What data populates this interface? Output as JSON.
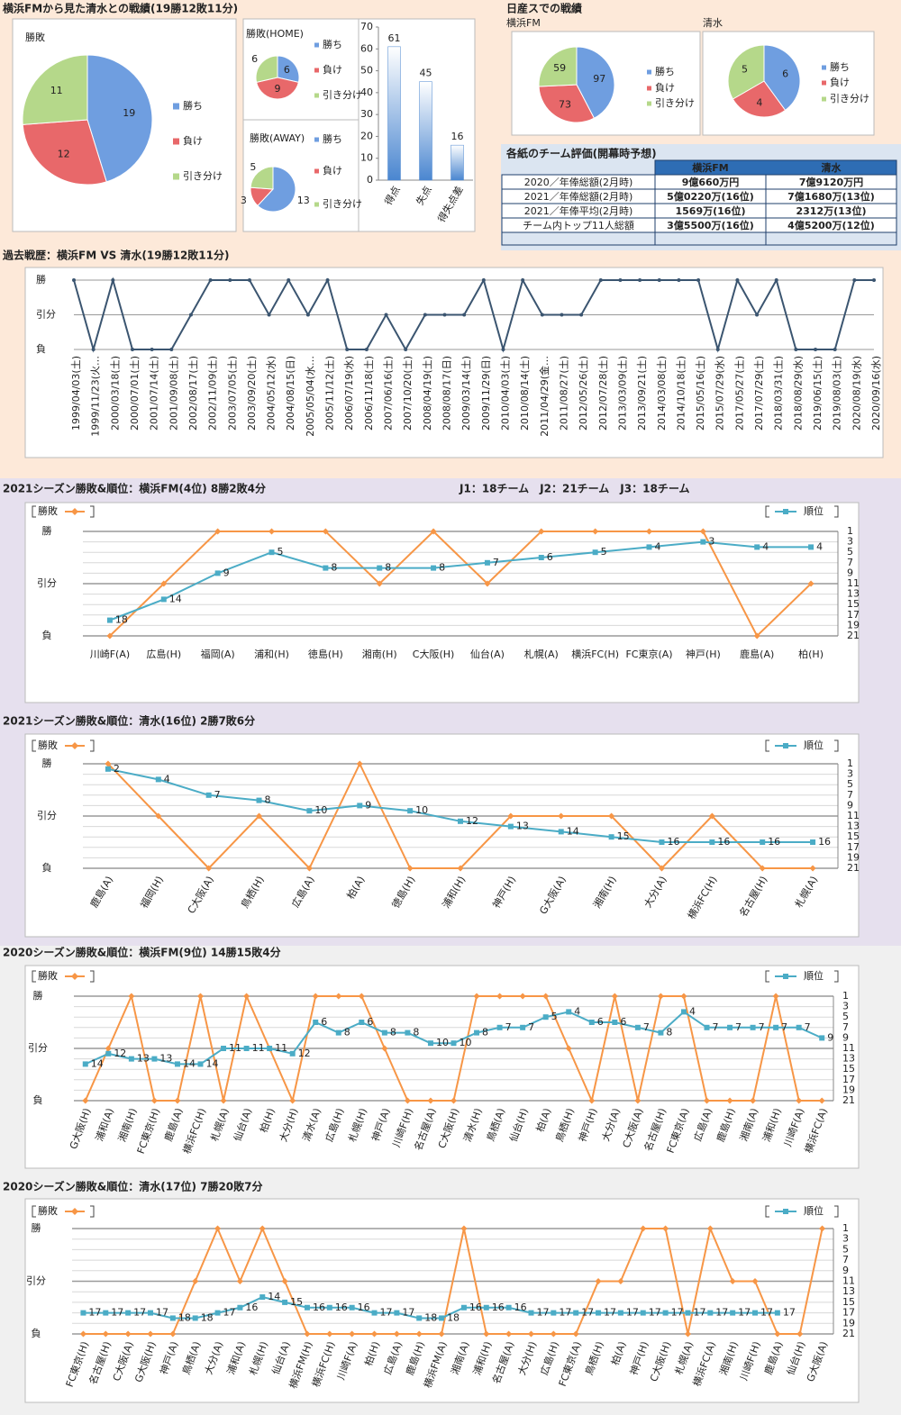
{
  "headings": [
    "横浜FMから見た清水との戦績(19勝12敗11分)",
    "日産スでの戦績"
  ],
  "table": {
    "title": "各紙のチーム評価(開幕時予想)",
    "header": [
      "横浜FM",
      "清水"
    ],
    "rows": [
      [
        "2020／年俸総額(2月時)",
        "9億660万円",
        "7億9120万円"
      ],
      [
        "2021／年俸総額(2月時)",
        "5億0220万(16位)",
        "7億1680万(13位)"
      ],
      [
        "2021／年俸平均(2月時)",
        "1569万(16位)",
        "2312万(13位)"
      ],
      [
        "チーム内トップ11人総額",
        "3億5500万(16位)",
        "4億5200万(12位)"
      ]
    ]
  },
  "chart_data": [
    {
      "type": "pie",
      "title": "勝敗",
      "categories": [
        "勝ち",
        "負け",
        "引き分け"
      ],
      "values": [
        19,
        12,
        11
      ],
      "colors": [
        "#6f9ee0",
        "#e8686a",
        "#b5d88a"
      ]
    },
    {
      "type": "pie",
      "title": "勝敗(HOME)",
      "categories": [
        "勝ち",
        "負け",
        "引き分け"
      ],
      "values": [
        6,
        9,
        6
      ],
      "colors": [
        "#6f9ee0",
        "#e8686a",
        "#b5d88a"
      ]
    },
    {
      "type": "pie",
      "title": "勝敗(AWAY)",
      "categories": [
        "勝ち",
        "負け",
        "引き分け"
      ],
      "values": [
        13,
        3,
        5
      ],
      "colors": [
        "#6f9ee0",
        "#e8686a",
        "#b5d88a"
      ]
    },
    {
      "type": "bar",
      "categories": [
        "得点",
        "失点",
        "得失点差"
      ],
      "values": [
        61,
        45,
        16
      ],
      "color": "#4a86d0",
      "ylim": [
        0,
        70
      ],
      "yticks": [
        0,
        10,
        20,
        30,
        40,
        50,
        60,
        70
      ]
    },
    {
      "type": "pie",
      "title": "横浜FM",
      "categories": [
        "勝ち",
        "負け",
        "引き分け"
      ],
      "values": [
        97,
        73,
        59
      ],
      "colors": [
        "#6f9ee0",
        "#e8686a",
        "#b5d88a"
      ]
    },
    {
      "type": "pie",
      "title": "清水",
      "categories": [
        "勝ち",
        "負け",
        "引き分け"
      ],
      "values": [
        6,
        4,
        5
      ],
      "colors": [
        "#6f9ee0",
        "#e8686a",
        "#b5d88a"
      ]
    },
    {
      "type": "line",
      "title": "過去戦歴：横浜FM VS 清水(19勝12敗11分)",
      "color": "#3b5570",
      "categories": [
        "1999/04/03(土)",
        "1999/11/23(火…",
        "2000/03/18(土)",
        "2000/07/01(土)",
        "2001/07/14(土)",
        "2001/09/08(土)",
        "2002/08/17(土)",
        "2002/11/09(土)",
        "2003/07/05(土)",
        "2003/09/20(土)",
        "2004/05/12(水)",
        "2004/08/15(日)",
        "2005/05/04(水…",
        "2005/11/12(土)",
        "2006/07/19(水)",
        "2006/11/18(土)",
        "2007/06/16(土)",
        "2007/10/20(土)",
        "2008/04/19(土)",
        "2008/08/17(日)",
        "2009/03/14(土)",
        "2009/11/29(日)",
        "2010/04/03(土)",
        "2010/08/14(土)",
        "2011/04/29(金…",
        "2011/08/27(土)",
        "2012/05/26(土)",
        "2012/07/28(土)",
        "2013/03/09(土)",
        "2013/09/21(土)",
        "2014/03/08(土)",
        "2014/10/18(土)",
        "2015/05/16(土)",
        "2015/07/29(水)",
        "2017/05/27(土)",
        "2017/07/29(土)",
        "2018/03/31(土)",
        "2018/08/29(水)",
        "2019/06/15(土)",
        "2019/08/03(土)",
        "2020/08/19(水)",
        "2020/09/16(水)"
      ],
      "values": [
        1,
        -1,
        1,
        -1,
        -1,
        -1,
        0,
        1,
        1,
        1,
        0,
        1,
        0,
        1,
        -1,
        -1,
        0,
        -1,
        0,
        0,
        0,
        1,
        -1,
        1,
        0,
        0,
        0,
        1,
        1,
        1,
        1,
        1,
        1,
        -1,
        1,
        0,
        1,
        -1,
        -1,
        -1,
        1,
        1
      ],
      "ylim": [
        -1,
        1
      ],
      "yticks": [
        {
          "value": 1,
          "label": "勝"
        },
        {
          "value": 0,
          "label": "引分"
        },
        {
          "value": -1,
          "label": "負"
        }
      ],
      "grid": true
    },
    {
      "type": "line",
      "title": "2021シーズン勝敗&順位：横浜FM(4位) 8勝2敗4分",
      "subtitle": "J1：18チーム　J2：21チーム　J3：18チーム",
      "categories": [
        "川崎F(A)",
        "広島(H)",
        "福岡(A)",
        "浦和(H)",
        "徳島(H)",
        "湘南(H)",
        "C大阪(H)",
        "仙台(A)",
        "札幌(A)",
        "横浜FC(H)",
        "FC東京(A)",
        "神戸(H)",
        "鹿島(A)",
        "柏(H)"
      ],
      "series": [
        {
          "name": "勝敗",
          "color": "#f79646",
          "values": [
            -1,
            0,
            1,
            1,
            1,
            0,
            1,
            0,
            1,
            1,
            1,
            1,
            -1,
            0
          ]
        },
        {
          "name": "順位",
          "color": "#4bacc6",
          "axis": "y2",
          "values": [
            18,
            14,
            9,
            5,
            8,
            8,
            8,
            7,
            6,
            5,
            4,
            3,
            4,
            4
          ]
        }
      ],
      "ylim": [
        -1,
        1
      ],
      "yticks": [
        {
          "value": 1,
          "label": "勝"
        },
        {
          "value": 0,
          "label": "引分"
        },
        {
          "value": -1,
          "label": "負"
        }
      ],
      "y2lim": [
        21,
        1
      ],
      "y2ticks": [
        1,
        3,
        5,
        7,
        9,
        11,
        13,
        15,
        17,
        19,
        21
      ],
      "grid": true
    },
    {
      "type": "line",
      "title": "2021シーズン勝敗&順位：清水(16位) 2勝7敗6分",
      "categories": [
        "鹿島(A)",
        "福岡(H)",
        "C大阪(A)",
        "鳥栖(H)",
        "広島(A)",
        "柏(A)",
        "徳島(H)",
        "浦和(H)",
        "神戸(H)",
        "G大阪(A)",
        "湘南(H)",
        "大分(A)",
        "横浜FC(H)",
        "名古屋(H)",
        "札幌(A)"
      ],
      "series": [
        {
          "name": "勝敗",
          "color": "#f79646",
          "values": [
            1,
            0,
            -1,
            0,
            -1,
            1,
            -1,
            -1,
            0,
            0,
            0,
            -1,
            0,
            -1,
            -1
          ]
        },
        {
          "name": "順位",
          "color": "#4bacc6",
          "axis": "y2",
          "values": [
            2,
            4,
            7,
            8,
            10,
            9,
            10,
            12,
            13,
            14,
            15,
            16,
            16,
            16,
            16
          ]
        }
      ],
      "ylim": [
        -1,
        1
      ],
      "yticks": [
        {
          "value": 1,
          "label": "勝"
        },
        {
          "value": 0,
          "label": "引分"
        },
        {
          "value": -1,
          "label": "負"
        }
      ],
      "y2lim": [
        21,
        1
      ],
      "y2ticks": [
        1,
        3,
        5,
        7,
        9,
        11,
        13,
        15,
        17,
        19,
        21
      ],
      "grid": true
    },
    {
      "type": "line",
      "title": "2020シーズン勝敗&順位：横浜FM(9位) 14勝15敗4分",
      "categories": [
        "G大阪(H)",
        "浦和(A)",
        "湘南(H)",
        "FC東京(H)",
        "鹿島(A)",
        "横浜FC(H)",
        "札幌(A)",
        "仙台(A)",
        "柏(H)",
        "大分(H)",
        "清水(A)",
        "広島(H)",
        "札幌(H)",
        "神戸(A)",
        "川崎F(H)",
        "名古屋(A)",
        "C大阪(H)",
        "清水(H)",
        "鳥栖(A)",
        "仙台(H)",
        "柏(A)",
        "鳥栖(H)",
        "神戸(H)",
        "大分(A)",
        "C大阪(A)",
        "名古屋(H)",
        "FC東京(A)",
        "広島(A)",
        "鹿島(H)",
        "湘南(A)",
        "浦和(H)",
        "川崎F(A)",
        "横浜FC(A)"
      ],
      "series": [
        {
          "name": "勝敗",
          "color": "#f79646",
          "values": [
            -1,
            0,
            1,
            -1,
            -1,
            1,
            -1,
            1,
            0,
            -1,
            1,
            1,
            1,
            0,
            -1,
            -1,
            -1,
            1,
            1,
            1,
            1,
            0,
            -1,
            1,
            -1,
            1,
            1,
            -1,
            -1,
            -1,
            1,
            -1,
            -1
          ]
        },
        {
          "name": "順位",
          "color": "#4bacc6",
          "axis": "y2",
          "values": [
            14,
            12,
            13,
            13,
            14,
            14,
            11,
            11,
            11,
            12,
            6,
            8,
            6,
            8,
            8,
            10,
            10,
            8,
            7,
            7,
            5,
            4,
            6,
            6,
            7,
            8,
            4,
            7,
            7,
            7,
            7,
            7,
            9
          ]
        }
      ],
      "ylim": [
        -1,
        1
      ],
      "yticks": [
        {
          "value": 1,
          "label": "勝"
        },
        {
          "value": 0,
          "label": "引分"
        },
        {
          "value": -1,
          "label": "負"
        }
      ],
      "y2lim": [
        21,
        1
      ],
      "y2ticks": [
        1,
        3,
        5,
        7,
        9,
        11,
        13,
        15,
        17,
        19,
        21
      ],
      "grid": true
    },
    {
      "type": "line",
      "title": "2020シーズン勝敗&順位：清水(17位) 7勝20敗7分",
      "categories": [
        "FC東京(H)",
        "名古屋(H)",
        "C大阪(A)",
        "G大阪(H)",
        "神戸(A)",
        "鳥栖(A)",
        "大分(A)",
        "浦和(A)",
        "札幌(H)",
        "仙台(A)",
        "横浜FM(H)",
        "横浜FC(H)",
        "川崎F(A)",
        "柏(H)",
        "広島(A)",
        "鹿島(H)",
        "横浜FM(A)",
        "湘南(A)",
        "浦和(H)",
        "名古屋(A)",
        "大分(H)",
        "広島(H)",
        "FC東京(A)",
        "鳥栖(H)",
        "柏(A)",
        "神戸(H)",
        "C大阪(H)",
        "札幌(A)",
        "横浜FC(A)",
        "湘南(H)",
        "川崎F(H)",
        "鹿島(A)",
        "仙台(H)",
        "G大阪(A)"
      ],
      "series": [
        {
          "name": "勝敗",
          "color": "#f79646",
          "values": [
            -1,
            -1,
            -1,
            -1,
            -1,
            0,
            1,
            0,
            1,
            0,
            -1,
            -1,
            -1,
            -1,
            -1,
            -1,
            -1,
            1,
            -1,
            -1,
            -1,
            -1,
            -1,
            0,
            0,
            1,
            1,
            -1,
            1,
            0,
            0,
            -1,
            -1,
            1
          ]
        },
        {
          "name": "順位",
          "color": "#4bacc6",
          "axis": "y2",
          "values": [
            17,
            17,
            17,
            17,
            18,
            18,
            17,
            16,
            14,
            15,
            16,
            16,
            16,
            17,
            17,
            18,
            18,
            16,
            16,
            16,
            17,
            17,
            17,
            17,
            17,
            17,
            17,
            17,
            17,
            17,
            17,
            17,
            null,
            null
          ]
        }
      ],
      "ylim": [
        -1,
        1
      ],
      "yticks": [
        {
          "value": 1,
          "label": "勝"
        },
        {
          "value": 0,
          "label": "引分"
        },
        {
          "value": -1,
          "label": "負"
        }
      ],
      "y2lim": [
        21,
        1
      ],
      "y2ticks": [
        1,
        3,
        5,
        7,
        9,
        11,
        13,
        15,
        17,
        19,
        21
      ],
      "grid": true
    }
  ]
}
